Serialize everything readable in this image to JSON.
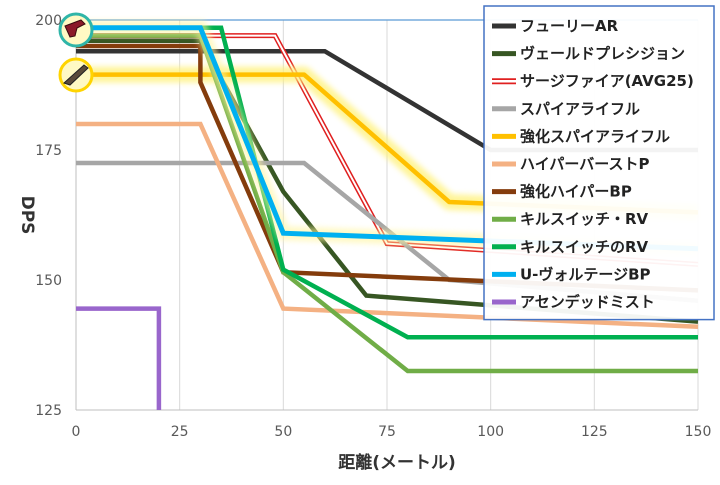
{
  "chart_data": {
    "type": "line",
    "title": "",
    "xlabel": "距離(メートル)",
    "ylabel": "DPS",
    "xlim": [
      0,
      150
    ],
    "ylim": [
      125,
      200
    ],
    "x_ticks": [
      "0",
      "25",
      "50",
      "75",
      "100",
      "125",
      "150"
    ],
    "y_ticks": [
      "125",
      "150",
      "175",
      "200"
    ],
    "grid": "vertical",
    "legend_position": "top-right",
    "series": [
      {
        "name": "フューリーAR",
        "color": "#333333",
        "style": "solid",
        "points": [
          [
            0,
            194
          ],
          [
            60,
            194
          ],
          [
            100,
            175
          ],
          [
            150,
            175
          ]
        ]
      },
      {
        "name": "ヴェールドプレシジョン",
        "color": "#375623",
        "style": "solid",
        "points": [
          [
            0,
            196
          ],
          [
            30,
            196
          ],
          [
            50,
            167
          ],
          [
            70,
            147
          ],
          [
            150,
            142
          ]
        ]
      },
      {
        "name": "サージファイア(AVG25)",
        "color": "#e02020",
        "style": "double",
        "points": [
          [
            0,
            197
          ],
          [
            48,
            197
          ],
          [
            75,
            157
          ],
          [
            150,
            153
          ]
        ]
      },
      {
        "name": "スパイアライフル",
        "color": "#a6a6a6",
        "style": "solid",
        "points": [
          [
            0,
            172.5
          ],
          [
            55,
            172.5
          ],
          [
            90,
            150
          ],
          [
            150,
            146
          ]
        ]
      },
      {
        "name": "強化スパイアライフル",
        "color": "#ffc000",
        "style": "highlight",
        "points": [
          [
            0,
            189.5
          ],
          [
            55,
            189.5
          ],
          [
            90,
            165
          ],
          [
            150,
            163
          ]
        ]
      },
      {
        "name": "ハイパーバーストP",
        "color": "#f4b183",
        "style": "solid",
        "points": [
          [
            0,
            180
          ],
          [
            30,
            180
          ],
          [
            50,
            144.5
          ],
          [
            150,
            141
          ]
        ]
      },
      {
        "name": "強化ハイパーBP",
        "color": "#843c0c",
        "style": "solid",
        "points": [
          [
            0,
            195
          ],
          [
            30,
            195
          ],
          [
            30,
            188
          ],
          [
            50,
            151.5
          ],
          [
            150,
            148
          ]
        ]
      },
      {
        "name": "キルスイッチ・RV",
        "color": "#70ad47",
        "style": "solid",
        "points": [
          [
            0,
            197
          ],
          [
            30,
            197
          ],
          [
            50,
            151.5
          ],
          [
            80,
            132.5
          ],
          [
            150,
            132.5
          ]
        ]
      },
      {
        "name": "キルスイッチのRV",
        "color": "#00b050",
        "style": "solid",
        "points": [
          [
            0,
            198.5
          ],
          [
            35,
            198.5
          ],
          [
            50,
            152
          ],
          [
            80,
            139
          ],
          [
            150,
            139
          ]
        ]
      },
      {
        "name": "U-ヴォルテージBP",
        "color": "#00b0f0",
        "style": "solid",
        "points": [
          [
            0,
            198.5
          ],
          [
            30,
            198.5
          ],
          [
            50,
            159
          ],
          [
            150,
            156
          ]
        ]
      },
      {
        "name": "アセンデッドミスト",
        "color": "#9966cc",
        "style": "solid",
        "points": [
          [
            0,
            144.5
          ],
          [
            20,
            144.5
          ],
          [
            20,
            125
          ]
        ]
      }
    ]
  },
  "icons": [
    {
      "name": "smg-weapon-icon",
      "border_color": "#2fb5a8"
    },
    {
      "name": "rifle-weapon-icon",
      "border_color": "#ffd400"
    }
  ]
}
